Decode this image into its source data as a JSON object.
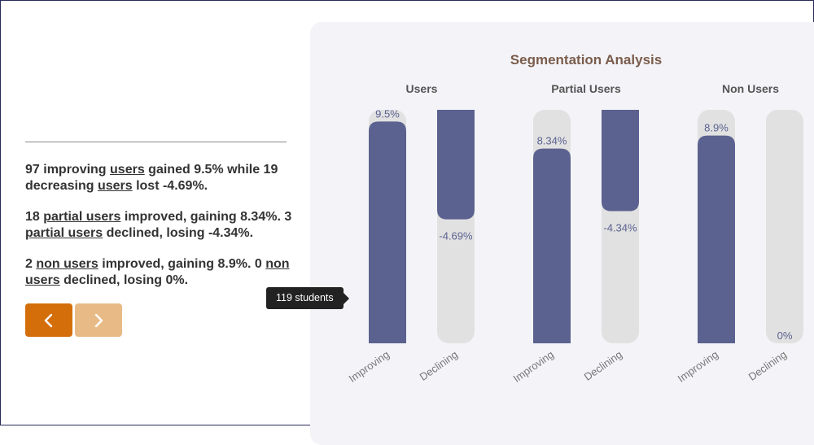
{
  "summary": {
    "p1": {
      "a": "97 improving ",
      "u1": "users",
      "b": " gained 9.5% while 19 decreasing ",
      "u2": "users",
      "c": " lost -4.69%."
    },
    "p2": {
      "a": "18 ",
      "u1": "partial users",
      "b": " improved, gaining 8.34%. 3 ",
      "u2": "partial users",
      "c": " declined, losing -4.34%."
    },
    "p3": {
      "a": "2 ",
      "u1": "non users",
      "b": " improved, gaining 8.9%. 0 ",
      "u2": "non users",
      "c": " declined, losing 0%."
    }
  },
  "nav": {
    "prev_icon": "chevron-left-icon",
    "next_icon": "chevron-right-icon"
  },
  "tooltip": {
    "text": "119 students"
  },
  "colors": {
    "bar": "#5b6290",
    "track": "#e1e1e1",
    "label": "#5b6290",
    "title": "#7a5c4c",
    "accent": "#d46e0a"
  },
  "chart_data": {
    "type": "bar",
    "title": "Segmentation Analysis",
    "groups": [
      "Users",
      "Partial Users",
      "Non Users"
    ],
    "categories": [
      "Improving",
      "Declining"
    ],
    "series": [
      {
        "name": "Users",
        "values": [
          9.5,
          -4.69
        ],
        "labels": [
          "9.5%",
          "-4.69%"
        ]
      },
      {
        "name": "Partial Users",
        "values": [
          8.34,
          -4.34
        ],
        "labels": [
          "8.34%",
          "-4.34%"
        ]
      },
      {
        "name": "Non Users",
        "values": [
          8.9,
          0
        ],
        "labels": [
          "8.9%",
          "0%"
        ]
      }
    ],
    "ylim": [
      -10,
      10
    ],
    "xlabel": "",
    "ylabel": ""
  }
}
